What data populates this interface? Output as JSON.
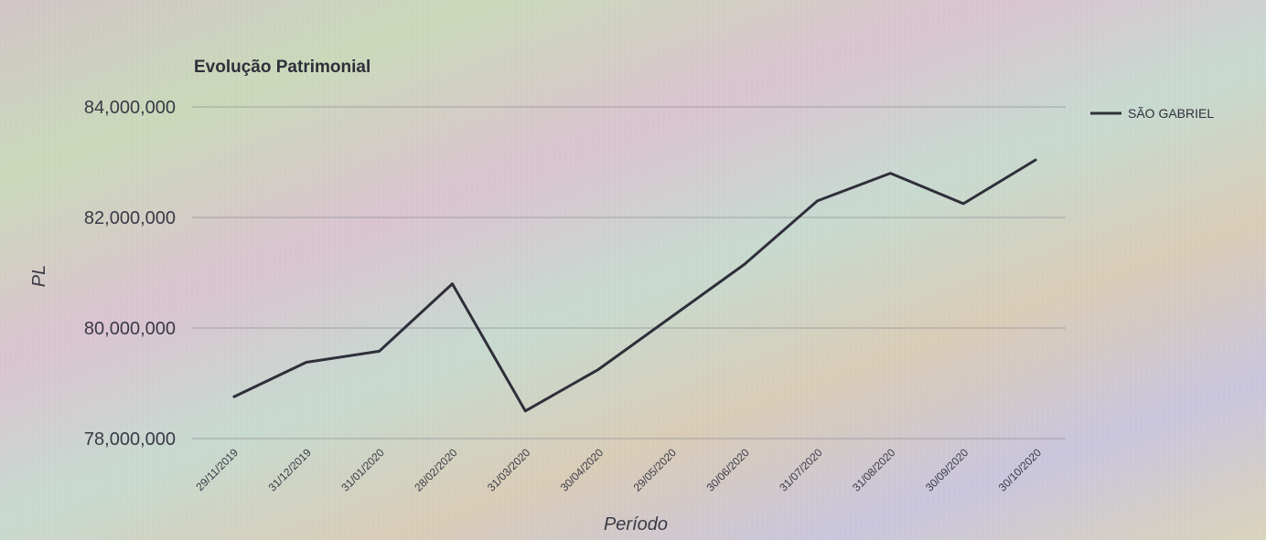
{
  "chart_data": {
    "type": "line",
    "title": "Evolução Patrimonial",
    "xlabel": "Período",
    "ylabel": "PL",
    "categories": [
      "29/11/2019",
      "31/12/2019",
      "31/01/2020",
      "28/02/2020",
      "31/03/2020",
      "30/04/2020",
      "29/05/2020",
      "30/06/2020",
      "31/07/2020",
      "31/08/2020",
      "30/09/2020",
      "30/10/2020"
    ],
    "series": [
      {
        "name": "SÃO GABRIEL",
        "color": "#2f2f3a",
        "values": [
          78750000,
          79380000,
          79580000,
          80800000,
          78500000,
          79250000,
          80200000,
          81150000,
          82300000,
          82800000,
          82250000,
          83050000
        ]
      }
    ],
    "yticks": [
      "78,000,000",
      "80,000,000",
      "82,000,000",
      "84,000,000"
    ],
    "ytick_values": [
      78000000,
      80000000,
      82000000,
      84000000
    ],
    "ylim": [
      78000000,
      84000000
    ],
    "grid": "horizontal",
    "legend_position": "right"
  }
}
